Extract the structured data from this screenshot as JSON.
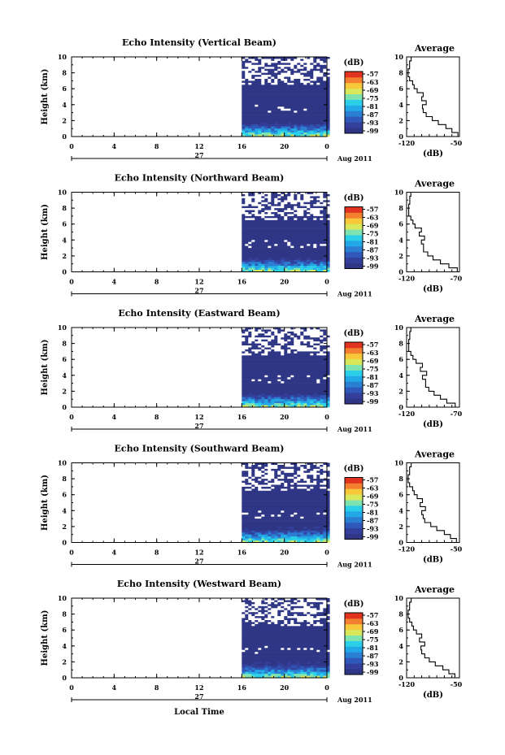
{
  "colors": {
    "background": "#2f3686",
    "scale": [
      "#2f3686",
      "#333f9a",
      "#2f58b8",
      "#2a7fd2",
      "#22a8e6",
      "#2bd0e8",
      "#7fe3b0",
      "#d8e85a",
      "#f6c83a",
      "#f2802e",
      "#e2331f"
    ]
  },
  "shared": {
    "x_ticks": [
      "0",
      "4",
      "8",
      "12",
      "16",
      "20",
      "0"
    ],
    "y_ticks": [
      "0",
      "2",
      "4",
      "6",
      "8",
      "10"
    ],
    "ylabel": "Height (km)",
    "date_day": "27",
    "date_month": "Aug 2011",
    "xlabel": "Local Time",
    "colorbar_unit": "(dB)",
    "colorbar_ticks": [
      "-57",
      "-63",
      "-69",
      "-75",
      "-81",
      "-87",
      "-93",
      "-99"
    ],
    "profile_title": "Average",
    "profile_xlabel": "(dB)"
  },
  "chart_data": [
    {
      "type": "heatmap",
      "title": "Echo Intensity (Vertical Beam)",
      "xlim": [
        0,
        24
      ],
      "ylim": [
        0,
        10
      ],
      "data_start_hour": 16,
      "colorbar_range": [
        -99,
        -57
      ],
      "profile": {
        "type": "line",
        "title": "Average",
        "xlabel": "(dB)",
        "xlim": [
          -120,
          -50
        ],
        "x_ticks": [
          "-120",
          "-50"
        ],
        "height": [
          0,
          0.5,
          1,
          1.5,
          2,
          2.5,
          3,
          3.5,
          4,
          4.5,
          5,
          5.5,
          6,
          6.5,
          7,
          7.5,
          8,
          8.5,
          9,
          9.5
        ],
        "db": [
          -52,
          -60,
          -68,
          -78,
          -86,
          -94,
          -98,
          -99,
          -94,
          -100,
          -98,
          -106,
          -110,
          -112,
          -116,
          -118,
          -118,
          -116,
          -116,
          -114
        ]
      }
    },
    {
      "type": "heatmap",
      "title": "Echo Intensity (Northward Beam)",
      "xlim": [
        0,
        24
      ],
      "ylim": [
        0,
        10
      ],
      "data_start_hour": 16,
      "colorbar_range": [
        -99,
        -57
      ],
      "profile": {
        "type": "line",
        "title": "Average",
        "xlabel": "(dB)",
        "xlim": [
          -120,
          -70
        ],
        "x_ticks": [
          "-120",
          "-70"
        ],
        "height": [
          0,
          0.5,
          1,
          1.5,
          2,
          2.5,
          3,
          3.5,
          4,
          4.5,
          5,
          5.5,
          6,
          6.5,
          7,
          7.5,
          8,
          8.5,
          9,
          9.5
        ],
        "db": [
          -72,
          -80,
          -88,
          -95,
          -100,
          -104,
          -104,
          -106,
          -103,
          -108,
          -106,
          -112,
          -114,
          -116,
          -118,
          -118,
          -118,
          -117,
          -117,
          -116
        ]
      }
    },
    {
      "type": "heatmap",
      "title": "Echo Intensity (Eastward Beam)",
      "xlim": [
        0,
        24
      ],
      "ylim": [
        0,
        10
      ],
      "data_start_hour": 16,
      "colorbar_range": [
        -99,
        -57
      ],
      "profile": {
        "type": "line",
        "title": "Average",
        "xlabel": "(dB)",
        "xlim": [
          -120,
          -70
        ],
        "x_ticks": [
          "-120",
          "-70"
        ],
        "height": [
          0,
          0.5,
          1,
          1.5,
          2,
          2.5,
          3,
          3.5,
          4,
          4.5,
          5,
          5.5,
          6,
          6.5,
          7,
          7.5,
          8,
          8.5,
          9,
          9.5
        ],
        "db": [
          -74,
          -82,
          -88,
          -94,
          -99,
          -102,
          -102,
          -105,
          -101,
          -107,
          -105,
          -111,
          -114,
          -116,
          -118,
          -118,
          -118,
          -117,
          -117,
          -116
        ]
      }
    },
    {
      "type": "heatmap",
      "title": "Echo Intensity (Southward Beam)",
      "xlim": [
        0,
        24
      ],
      "ylim": [
        0,
        10
      ],
      "data_start_hour": 16,
      "colorbar_range": [
        -99,
        -57
      ],
      "profile": {
        "type": "line",
        "title": "Average",
        "xlabel": "(dB)",
        "xlim": [
          -120,
          -50
        ],
        "x_ticks": [
          "-120",
          "-50"
        ],
        "height": [
          0,
          0.5,
          1,
          1.5,
          2,
          2.5,
          3,
          3.5,
          4,
          4.5,
          5,
          5.5,
          6,
          6.5,
          7,
          7.5,
          8,
          8.5,
          9,
          9.5
        ],
        "db": [
          -54,
          -62,
          -70,
          -80,
          -88,
          -96,
          -98,
          -100,
          -95,
          -102,
          -99,
          -106,
          -110,
          -112,
          -116,
          -118,
          -118,
          -116,
          -116,
          -114
        ]
      }
    },
    {
      "type": "heatmap",
      "title": "Echo Intensity (Westward Beam)",
      "xlim": [
        0,
        24
      ],
      "ylim": [
        0,
        10
      ],
      "data_start_hour": 16,
      "colorbar_range": [
        -99,
        -57
      ],
      "profile": {
        "type": "line",
        "title": "Average",
        "xlabel": "(dB)",
        "xlim": [
          -120,
          -50
        ],
        "x_ticks": [
          "-120",
          "-50"
        ],
        "height": [
          0,
          0.5,
          1,
          1.5,
          2,
          2.5,
          3,
          3.5,
          4,
          4.5,
          5,
          5.5,
          6,
          6.5,
          7,
          7.5,
          8,
          8.5,
          9,
          9.5
        ],
        "db": [
          -56,
          -64,
          -72,
          -82,
          -90,
          -96,
          -100,
          -101,
          -96,
          -103,
          -100,
          -107,
          -111,
          -113,
          -116,
          -118,
          -118,
          -116,
          -116,
          -114
        ]
      }
    }
  ]
}
